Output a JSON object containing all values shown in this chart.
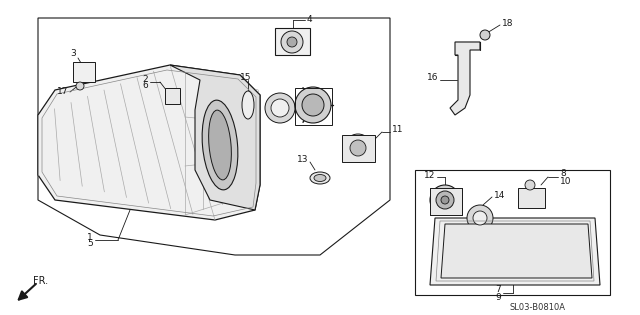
{
  "bg_color": "#ffffff",
  "line_color": "#1a1a1a",
  "diagram_code": "SL03-B0810A"
}
